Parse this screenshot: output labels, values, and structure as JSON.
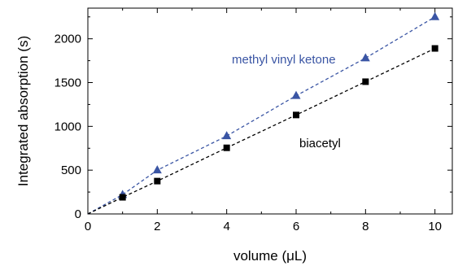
{
  "chart_data": {
    "type": "scatter",
    "xlabel": "volume   (μL)",
    "ylabel": "Integrated absorption   (s)",
    "xlim": [
      0,
      10.5
    ],
    "ylim": [
      0,
      2350
    ],
    "x_ticks": [
      0,
      2,
      4,
      6,
      8,
      10
    ],
    "y_ticks": [
      0,
      500,
      1000,
      1500,
      2000
    ],
    "x_minor_ticks": [
      1,
      3,
      5,
      7,
      9
    ],
    "y_minor_ticks": [
      250,
      750,
      1250,
      1750,
      2250
    ],
    "grid": false,
    "legend": "none",
    "series": [
      {
        "name": "methyl vinyl ketone",
        "marker": "triangle",
        "color": "#3a55a4",
        "line_style": "dashed",
        "x": [
          0,
          1,
          2,
          4,
          6,
          8,
          10
        ],
        "y": [
          0,
          220,
          500,
          890,
          1350,
          1780,
          2250
        ]
      },
      {
        "name": "biacetyl",
        "marker": "square",
        "color": "#000000",
        "line_style": "dashed",
        "x": [
          0,
          1,
          2,
          4,
          6,
          8,
          10
        ],
        "y": [
          0,
          190,
          375,
          755,
          1130,
          1510,
          1890
        ]
      }
    ]
  }
}
